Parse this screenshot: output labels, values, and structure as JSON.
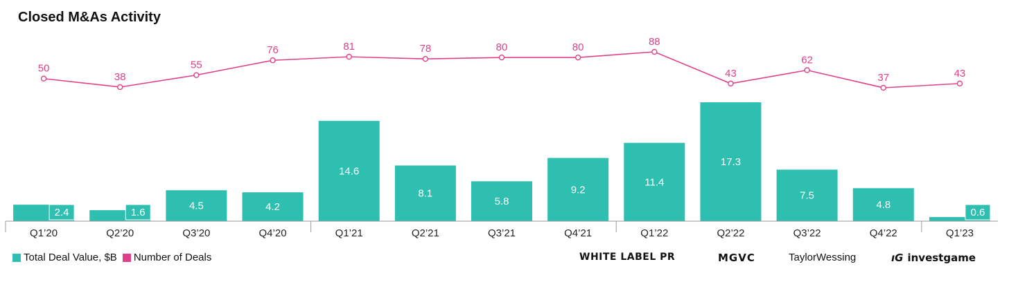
{
  "chart_data": {
    "type": "bar+line",
    "title": "Closed M&As Activity",
    "categories": [
      "Q1’20",
      "Q2’20",
      "Q3’20",
      "Q4’20",
      "Q1’21",
      "Q2’21",
      "Q3’21",
      "Q4’21",
      "Q1’22",
      "Q2’22",
      "Q3’22",
      "Q4’22",
      "Q1’23"
    ],
    "series": [
      {
        "name": "Total Deal Value, $B",
        "type": "bar",
        "color": "#2ebfb0",
        "values": [
          2.4,
          1.6,
          4.5,
          4.2,
          14.6,
          8.1,
          5.8,
          9.2,
          11.4,
          17.3,
          7.5,
          4.8,
          0.6
        ],
        "labels": [
          "2.4",
          "1.6",
          "4.5",
          "4.2",
          "14.6",
          "8.1",
          "5.8",
          "9.2",
          "11.4",
          "17.3",
          "7.5",
          "4.8",
          "0.6"
        ]
      },
      {
        "name": "Number of Deals",
        "type": "line",
        "color": "#e0408a",
        "values": [
          50,
          38,
          55,
          76,
          81,
          78,
          80,
          80,
          88,
          43,
          62,
          37,
          43
        ],
        "labels": [
          "50",
          "38",
          "55",
          "76",
          "81",
          "78",
          "80",
          "80",
          "88",
          "43",
          "62",
          "37",
          "43"
        ]
      }
    ],
    "legend_position": "bottom-left",
    "grid": false
  },
  "legend": {
    "items": [
      {
        "label": "Total Deal Value, $B",
        "color": "#2ebfb0"
      },
      {
        "label": "Number of Deals",
        "color": "#e0408a"
      }
    ]
  },
  "logos": {
    "white_label_pr": "WHITE LABEL PR",
    "mgvc": "MGVC",
    "taylor_wessing": "TaylorWessing",
    "investgame": "investgame"
  }
}
